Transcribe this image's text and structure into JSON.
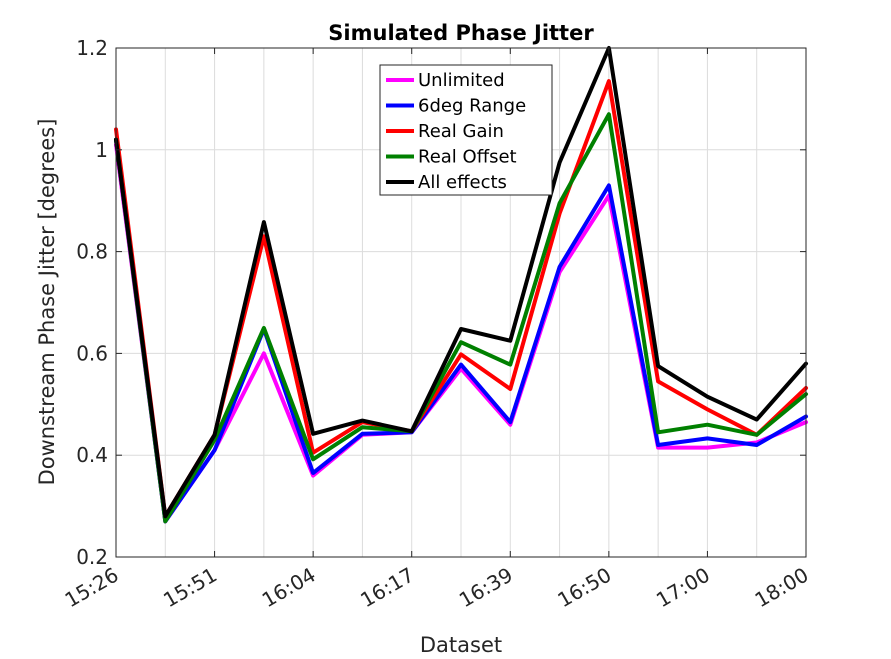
{
  "chart_data": {
    "type": "line",
    "title": "Simulated Phase Jitter",
    "xlabel": "Dataset",
    "ylabel": "Downstream Phase Jitter [degrees]",
    "x": [
      1,
      2,
      3,
      4,
      5,
      6,
      7,
      8,
      9,
      10,
      11,
      12,
      13,
      14,
      15
    ],
    "xlim": [
      1,
      15
    ],
    "ylim": [
      0.2,
      1.2
    ],
    "yticks": [
      0.2,
      0.4,
      0.6,
      0.8,
      1,
      1.2
    ],
    "ytick_labels": [
      "0.2",
      "0.4",
      "0.6",
      "0.8",
      "1",
      "1.2"
    ],
    "xticks": [
      1,
      3,
      5,
      7,
      9,
      11,
      13,
      15
    ],
    "xtick_labels": [
      "15:26",
      "15:51",
      "16:04",
      "16:17",
      "16:39",
      "16:50",
      "17:00",
      "18:00"
    ],
    "grid": true,
    "legend_position": "top-center",
    "series": [
      {
        "name": "Unlimited",
        "color": "#ff00ff",
        "values": [
          1.01,
          0.27,
          0.41,
          0.6,
          0.36,
          0.44,
          0.445,
          0.57,
          0.46,
          0.76,
          0.91,
          0.415,
          0.415,
          0.425,
          0.465
        ]
      },
      {
        "name": "6deg Range",
        "color": "#0000ff",
        "values": [
          1.02,
          0.27,
          0.41,
          0.648,
          0.365,
          0.442,
          0.445,
          0.578,
          0.465,
          0.77,
          0.93,
          0.42,
          0.433,
          0.42,
          0.476
        ]
      },
      {
        "name": "Real Gain",
        "color": "#ff0000",
        "values": [
          1.04,
          0.28,
          0.44,
          0.83,
          0.405,
          0.465,
          0.447,
          0.598,
          0.53,
          0.875,
          1.135,
          0.545,
          0.49,
          0.44,
          0.532
        ]
      },
      {
        "name": "Real Offset",
        "color": "#008000",
        "values": [
          1.02,
          0.27,
          0.43,
          0.65,
          0.392,
          0.455,
          0.447,
          0.622,
          0.578,
          0.895,
          1.07,
          0.445,
          0.46,
          0.44,
          0.52
        ]
      },
      {
        "name": "All effects",
        "color": "#000000",
        "values": [
          1.02,
          0.28,
          0.44,
          0.858,
          0.442,
          0.468,
          0.447,
          0.648,
          0.625,
          0.975,
          1.2,
          0.575,
          0.515,
          0.47,
          0.58
        ]
      }
    ]
  }
}
